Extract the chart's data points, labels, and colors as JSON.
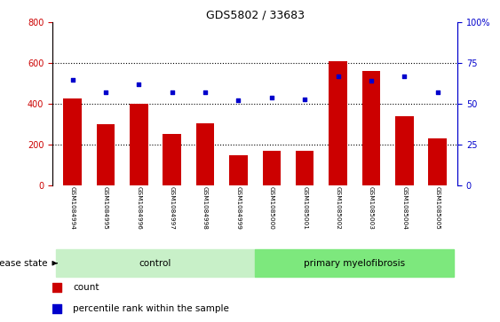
{
  "title": "GDS5802 / 33683",
  "samples": [
    "GSM1084994",
    "GSM1084995",
    "GSM1084996",
    "GSM1084997",
    "GSM1084998",
    "GSM1084999",
    "GSM1085000",
    "GSM1085001",
    "GSM1085002",
    "GSM1085003",
    "GSM1085004",
    "GSM1085005"
  ],
  "counts": [
    425,
    300,
    400,
    250,
    305,
    148,
    170,
    168,
    608,
    560,
    340,
    228
  ],
  "percentiles": [
    65,
    57,
    62,
    57,
    57,
    52,
    54,
    53,
    67,
    64,
    67,
    57
  ],
  "bar_color": "#cc0000",
  "dot_color": "#0000cc",
  "control_label": "control",
  "disease_label": "primary myelofibrosis",
  "disease_state_label": "disease state",
  "left_ylim": [
    0,
    800
  ],
  "right_ylim": [
    0,
    100
  ],
  "left_yticks": [
    0,
    200,
    400,
    600,
    800
  ],
  "right_yticks": [
    0,
    25,
    50,
    75,
    100
  ],
  "right_yticklabels": [
    "0",
    "25",
    "50",
    "75",
    "100%"
  ],
  "legend_count": "count",
  "legend_percentile": "percentile rank within the sample",
  "control_color": "#c8f0c8",
  "myelofibrosis_color": "#7de87d",
  "tick_area_bg": "#c8c8c8",
  "plot_bg": "#ffffff",
  "grid_color": "#000000",
  "title_fontsize": 9,
  "tick_fontsize": 7,
  "label_fontsize": 7.5
}
